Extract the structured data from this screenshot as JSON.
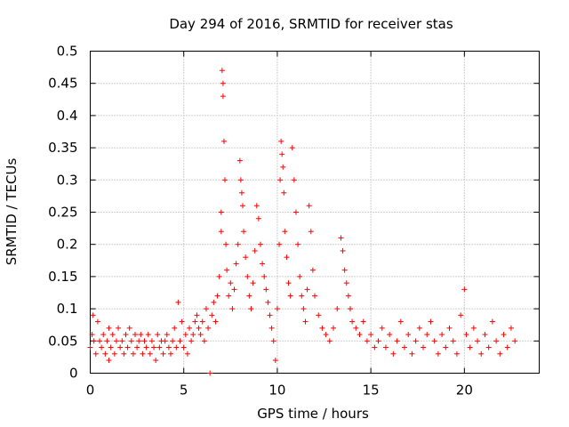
{
  "chart_data": {
    "type": "scatter",
    "title": "Day 294 of 2016, SRMTID for receiver stas",
    "xlabel": "GPS time / hours",
    "ylabel": "SRMTID / TECUs",
    "xlim": [
      0,
      24
    ],
    "ylim": [
      0,
      0.5
    ],
    "xticks": [
      0,
      5,
      10,
      15,
      20
    ],
    "xtick_labels": [
      "0",
      "5",
      "10",
      "15",
      "20"
    ],
    "yticks": [
      0,
      0.05,
      0.1,
      0.15,
      0.2,
      0.25,
      0.3,
      0.35,
      0.4,
      0.45,
      0.5
    ],
    "ytick_labels": [
      "0",
      "0.05",
      "0.1",
      "0.15",
      "0.2",
      "0.25",
      "0.3",
      "0.35",
      "0.4",
      "0.45",
      "0.5"
    ],
    "grid": true,
    "marker": "+",
    "color": "#ff0000",
    "series": [
      {
        "name": "SRMTID",
        "points": [
          [
            0.0,
            0.04
          ],
          [
            0.1,
            0.06
          ],
          [
            0.15,
            0.09
          ],
          [
            0.2,
            0.05
          ],
          [
            0.3,
            0.03
          ],
          [
            0.4,
            0.08
          ],
          [
            0.5,
            0.05
          ],
          [
            0.6,
            0.04
          ],
          [
            0.7,
            0.06
          ],
          [
            0.8,
            0.03
          ],
          [
            0.9,
            0.05
          ],
          [
            1.0,
            0.02
          ],
          [
            1.0,
            0.07
          ],
          [
            1.1,
            0.04
          ],
          [
            1.2,
            0.06
          ],
          [
            1.3,
            0.03
          ],
          [
            1.4,
            0.05
          ],
          [
            1.5,
            0.07
          ],
          [
            1.6,
            0.04
          ],
          [
            1.7,
            0.05
          ],
          [
            1.8,
            0.03
          ],
          [
            1.9,
            0.06
          ],
          [
            2.0,
            0.04
          ],
          [
            2.1,
            0.07
          ],
          [
            2.2,
            0.05
          ],
          [
            2.3,
            0.03
          ],
          [
            2.4,
            0.06
          ],
          [
            2.5,
            0.04
          ],
          [
            2.6,
            0.05
          ],
          [
            2.7,
            0.06
          ],
          [
            2.8,
            0.03
          ],
          [
            2.9,
            0.05
          ],
          [
            3.0,
            0.04
          ],
          [
            3.1,
            0.06
          ],
          [
            3.2,
            0.03
          ],
          [
            3.3,
            0.05
          ],
          [
            3.4,
            0.04
          ],
          [
            3.5,
            0.02
          ],
          [
            3.6,
            0.06
          ],
          [
            3.7,
            0.04
          ],
          [
            3.8,
            0.05
          ],
          [
            3.9,
            0.03
          ],
          [
            4.0,
            0.05
          ],
          [
            4.1,
            0.06
          ],
          [
            4.2,
            0.04
          ],
          [
            4.3,
            0.03
          ],
          [
            4.4,
            0.05
          ],
          [
            4.5,
            0.07
          ],
          [
            4.6,
            0.04
          ],
          [
            4.7,
            0.11
          ],
          [
            4.8,
            0.05
          ],
          [
            4.9,
            0.08
          ],
          [
            5.0,
            0.04
          ],
          [
            5.1,
            0.06
          ],
          [
            5.2,
            0.03
          ],
          [
            5.3,
            0.07
          ],
          [
            5.4,
            0.05
          ],
          [
            5.5,
            0.06
          ],
          [
            5.6,
            0.08
          ],
          [
            5.7,
            0.09
          ],
          [
            5.8,
            0.07
          ],
          [
            5.9,
            0.06
          ],
          [
            6.0,
            0.08
          ],
          [
            6.1,
            0.05
          ],
          [
            6.2,
            0.1
          ],
          [
            6.3,
            0.07
          ],
          [
            6.4,
            0.0
          ],
          [
            6.5,
            0.09
          ],
          [
            6.6,
            0.11
          ],
          [
            6.7,
            0.08
          ],
          [
            6.8,
            0.12
          ],
          [
            6.9,
            0.15
          ],
          [
            7.0,
            0.22
          ],
          [
            7.0,
            0.25
          ],
          [
            7.05,
            0.47
          ],
          [
            7.1,
            0.45
          ],
          [
            7.1,
            0.43
          ],
          [
            7.15,
            0.36
          ],
          [
            7.2,
            0.3
          ],
          [
            7.25,
            0.2
          ],
          [
            7.3,
            0.16
          ],
          [
            7.4,
            0.12
          ],
          [
            7.5,
            0.14
          ],
          [
            7.6,
            0.1
          ],
          [
            7.7,
            0.13
          ],
          [
            7.8,
            0.17
          ],
          [
            7.9,
            0.2
          ],
          [
            8.0,
            0.33
          ],
          [
            8.05,
            0.3
          ],
          [
            8.1,
            0.28
          ],
          [
            8.15,
            0.26
          ],
          [
            8.2,
            0.22
          ],
          [
            8.3,
            0.18
          ],
          [
            8.4,
            0.15
          ],
          [
            8.5,
            0.12
          ],
          [
            8.6,
            0.1
          ],
          [
            8.7,
            0.14
          ],
          [
            8.8,
            0.19
          ],
          [
            8.9,
            0.26
          ],
          [
            9.0,
            0.24
          ],
          [
            9.1,
            0.2
          ],
          [
            9.2,
            0.17
          ],
          [
            9.3,
            0.15
          ],
          [
            9.4,
            0.13
          ],
          [
            9.5,
            0.11
          ],
          [
            9.6,
            0.09
          ],
          [
            9.7,
            0.07
          ],
          [
            9.8,
            0.05
          ],
          [
            9.9,
            0.02
          ],
          [
            10.0,
            0.1
          ],
          [
            10.1,
            0.2
          ],
          [
            10.15,
            0.3
          ],
          [
            10.2,
            0.36
          ],
          [
            10.25,
            0.34
          ],
          [
            10.3,
            0.32
          ],
          [
            10.35,
            0.28
          ],
          [
            10.4,
            0.22
          ],
          [
            10.5,
            0.18
          ],
          [
            10.6,
            0.14
          ],
          [
            10.7,
            0.12
          ],
          [
            10.8,
            0.35
          ],
          [
            10.9,
            0.3
          ],
          [
            11.0,
            0.25
          ],
          [
            11.1,
            0.2
          ],
          [
            11.2,
            0.15
          ],
          [
            11.3,
            0.12
          ],
          [
            11.4,
            0.1
          ],
          [
            11.5,
            0.08
          ],
          [
            11.6,
            0.13
          ],
          [
            11.7,
            0.26
          ],
          [
            11.8,
            0.22
          ],
          [
            11.9,
            0.16
          ],
          [
            12.0,
            0.12
          ],
          [
            12.2,
            0.09
          ],
          [
            12.4,
            0.07
          ],
          [
            12.6,
            0.06
          ],
          [
            12.8,
            0.05
          ],
          [
            13.0,
            0.07
          ],
          [
            13.2,
            0.1
          ],
          [
            13.4,
            0.21
          ],
          [
            13.5,
            0.19
          ],
          [
            13.6,
            0.16
          ],
          [
            13.7,
            0.14
          ],
          [
            13.8,
            0.12
          ],
          [
            13.9,
            0.1
          ],
          [
            14.0,
            0.08
          ],
          [
            14.2,
            0.07
          ],
          [
            14.4,
            0.06
          ],
          [
            14.6,
            0.08
          ],
          [
            14.8,
            0.05
          ],
          [
            15.0,
            0.06
          ],
          [
            15.2,
            0.04
          ],
          [
            15.4,
            0.05
          ],
          [
            15.6,
            0.07
          ],
          [
            15.8,
            0.04
          ],
          [
            16.0,
            0.06
          ],
          [
            16.2,
            0.03
          ],
          [
            16.4,
            0.05
          ],
          [
            16.6,
            0.08
          ],
          [
            16.8,
            0.04
          ],
          [
            17.0,
            0.06
          ],
          [
            17.2,
            0.03
          ],
          [
            17.4,
            0.05
          ],
          [
            17.6,
            0.07
          ],
          [
            17.8,
            0.04
          ],
          [
            18.0,
            0.06
          ],
          [
            18.2,
            0.08
          ],
          [
            18.4,
            0.05
          ],
          [
            18.6,
            0.03
          ],
          [
            18.8,
            0.06
          ],
          [
            19.0,
            0.04
          ],
          [
            19.2,
            0.07
          ],
          [
            19.4,
            0.05
          ],
          [
            19.6,
            0.03
          ],
          [
            19.8,
            0.09
          ],
          [
            20.0,
            0.13
          ],
          [
            20.1,
            0.06
          ],
          [
            20.3,
            0.04
          ],
          [
            20.5,
            0.07
          ],
          [
            20.7,
            0.05
          ],
          [
            20.9,
            0.03
          ],
          [
            21.1,
            0.06
          ],
          [
            21.3,
            0.04
          ],
          [
            21.5,
            0.08
          ],
          [
            21.7,
            0.05
          ],
          [
            21.9,
            0.03
          ],
          [
            22.1,
            0.06
          ],
          [
            22.3,
            0.04
          ],
          [
            22.5,
            0.07
          ],
          [
            22.7,
            0.05
          ]
        ]
      }
    ]
  }
}
